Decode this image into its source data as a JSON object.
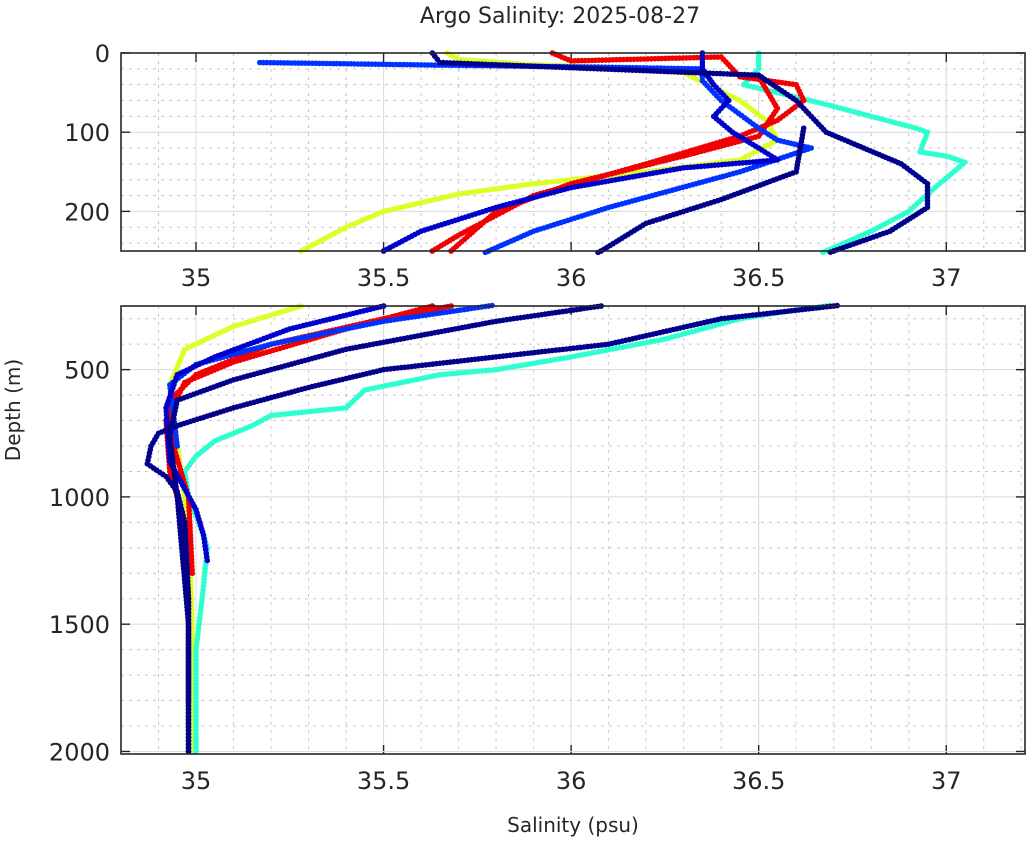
{
  "chart_data": {
    "type": "scatter",
    "title": "Argo Salinity: 2025-08-27",
    "xlabel": "Salinity (psu)",
    "ylabel": "Depth (m)",
    "grid": true,
    "panels": [
      {
        "name": "upper",
        "xlim": [
          34.8,
          37.21
        ],
        "ylim": [
          0,
          250
        ],
        "y_reversed": true,
        "xticks": [
          35,
          35.5,
          36,
          36.5,
          37
        ],
        "xtick_labels": [
          "35",
          "35.5",
          "36",
          "36.5",
          "37"
        ],
        "yticks": [
          0,
          100,
          200
        ],
        "ytick_labels": [
          "0",
          "100",
          "200"
        ],
        "xminor_step": 0.1,
        "yminor_step": 20
      },
      {
        "name": "lower",
        "xlim": [
          34.8,
          37.21
        ],
        "ylim": [
          250,
          2010
        ],
        "y_reversed": true,
        "xticks": [
          35,
          35.5,
          36,
          36.5,
          37
        ],
        "xtick_labels": [
          "35",
          "35.5",
          "36",
          "36.5",
          "37"
        ],
        "yticks": [
          500,
          1000,
          1500,
          2000
        ],
        "ytick_labels": [
          "500",
          "1000",
          "1500",
          "2000"
        ],
        "xminor_step": 0.1,
        "yminor_step": 100
      }
    ],
    "series": [
      {
        "name": "profile-yellow",
        "color": "#dcff2a",
        "points": [
          [
            35.67,
            0
          ],
          [
            35.7,
            8
          ],
          [
            35.9,
            15
          ],
          [
            36.1,
            18
          ],
          [
            36.3,
            25
          ],
          [
            36.45,
            60
          ],
          [
            36.52,
            85
          ],
          [
            36.55,
            110
          ],
          [
            36.45,
            135
          ],
          [
            36.2,
            150
          ],
          [
            35.9,
            165
          ],
          [
            35.7,
            178
          ],
          [
            35.5,
            200
          ],
          [
            35.4,
            220
          ],
          [
            35.28,
            250
          ],
          [
            35.28,
            250
          ],
          [
            35.1,
            330
          ],
          [
            34.97,
            420
          ],
          [
            34.93,
            560
          ],
          [
            34.95,
            800
          ],
          [
            34.98,
            1100
          ],
          [
            34.99,
            1500
          ],
          [
            34.99,
            2000
          ]
        ]
      },
      {
        "name": "profile-cyan",
        "color": "#2effd0",
        "points": [
          [
            36.5,
            0
          ],
          [
            36.5,
            20
          ],
          [
            36.46,
            40
          ],
          [
            36.55,
            50
          ],
          [
            36.68,
            65
          ],
          [
            36.8,
            80
          ],
          [
            36.92,
            95
          ],
          [
            36.95,
            100
          ],
          [
            36.93,
            125
          ],
          [
            37.0,
            130
          ],
          [
            37.05,
            138
          ],
          [
            36.97,
            170
          ],
          [
            36.9,
            200
          ],
          [
            36.8,
            225
          ],
          [
            36.68,
            250
          ],
          [
            36.6,
            265
          ],
          [
            36.45,
            300
          ],
          [
            36.25,
            380
          ],
          [
            36.0,
            450
          ],
          [
            35.8,
            500
          ],
          [
            35.65,
            520
          ],
          [
            35.45,
            580
          ],
          [
            35.4,
            650
          ],
          [
            35.2,
            680
          ],
          [
            35.15,
            720
          ],
          [
            35.05,
            780
          ],
          [
            35.0,
            840
          ],
          [
            34.97,
            900
          ],
          [
            34.98,
            1000
          ],
          [
            35.02,
            1150
          ],
          [
            35.03,
            1200
          ],
          [
            35.02,
            1350
          ],
          [
            35.0,
            1600
          ],
          [
            35.0,
            1750
          ],
          [
            35.0,
            2000
          ]
        ]
      },
      {
        "name": "profile-red",
        "color": "#f00000",
        "points": [
          [
            35.95,
            0
          ],
          [
            36.0,
            10
          ],
          [
            36.4,
            5
          ],
          [
            36.45,
            30
          ],
          [
            36.6,
            40
          ],
          [
            36.62,
            60
          ],
          [
            36.55,
            85
          ],
          [
            36.45,
            105
          ],
          [
            36.2,
            140
          ],
          [
            35.9,
            180
          ],
          [
            35.7,
            230
          ],
          [
            35.63,
            250
          ],
          [
            35.63,
            250
          ],
          [
            35.4,
            340
          ],
          [
            35.1,
            470
          ],
          [
            34.97,
            550
          ],
          [
            34.92,
            700
          ],
          [
            34.93,
            900
          ],
          [
            34.97,
            1100
          ],
          [
            34.98,
            1400
          ],
          [
            34.98,
            1800
          ]
        ]
      },
      {
        "name": "profile-red-2",
        "color": "#f00000",
        "points": [
          [
            36.5,
            30
          ],
          [
            36.55,
            70
          ],
          [
            36.5,
            105
          ],
          [
            36.3,
            130
          ],
          [
            36.0,
            165
          ],
          [
            35.8,
            200
          ],
          [
            35.68,
            250
          ],
          [
            35.68,
            250
          ],
          [
            35.5,
            300
          ],
          [
            35.2,
            400
          ],
          [
            35.0,
            520
          ],
          [
            34.93,
            620
          ],
          [
            34.94,
            800
          ],
          [
            34.98,
            1000
          ],
          [
            34.99,
            1300
          ]
        ]
      },
      {
        "name": "profile-blue",
        "color": "#0032ff",
        "points": [
          [
            35.17,
            12
          ],
          [
            35.6,
            15
          ],
          [
            36.1,
            18
          ],
          [
            36.35,
            20
          ],
          [
            36.35,
            35
          ],
          [
            36.4,
            60
          ],
          [
            36.5,
            95
          ],
          [
            36.55,
            110
          ],
          [
            36.64,
            120
          ],
          [
            36.45,
            150
          ],
          [
            36.1,
            195
          ],
          [
            35.9,
            225
          ],
          [
            35.78,
            250
          ],
          [
            35.78,
            250
          ],
          [
            35.5,
            310
          ],
          [
            35.2,
            400
          ],
          [
            35.0,
            480
          ],
          [
            34.93,
            560
          ],
          [
            34.95,
            800
          ]
        ]
      },
      {
        "name": "profile-mediumblue",
        "color": "#0000cd",
        "points": [
          [
            36.35,
            0
          ],
          [
            36.35,
            20
          ],
          [
            36.38,
            40
          ],
          [
            36.42,
            60
          ],
          [
            36.38,
            80
          ],
          [
            36.43,
            100
          ],
          [
            36.5,
            120
          ],
          [
            36.55,
            135
          ],
          [
            36.3,
            145
          ],
          [
            36.0,
            170
          ],
          [
            35.8,
            195
          ],
          [
            35.6,
            225
          ],
          [
            35.5,
            250
          ],
          [
            35.5,
            250
          ],
          [
            35.25,
            340
          ],
          [
            35.05,
            450
          ],
          [
            34.95,
            520
          ],
          [
            34.92,
            650
          ],
          [
            34.93,
            860
          ],
          [
            35.0,
            1050
          ],
          [
            35.02,
            1150
          ],
          [
            35.03,
            1250
          ]
        ]
      },
      {
        "name": "profile-darkblue",
        "color": "#00008b",
        "points": [
          [
            35.63,
            0
          ],
          [
            35.65,
            12
          ],
          [
            36.5,
            28
          ],
          [
            36.6,
            60
          ],
          [
            36.68,
            100
          ],
          [
            36.78,
            120
          ],
          [
            36.88,
            140
          ],
          [
            36.95,
            165
          ],
          [
            36.95,
            195
          ],
          [
            36.85,
            225
          ],
          [
            36.7,
            250
          ],
          [
            36.7,
            250
          ],
          [
            36.4,
            300
          ],
          [
            36.1,
            400
          ],
          [
            35.8,
            450
          ],
          [
            35.5,
            500
          ],
          [
            35.3,
            570
          ],
          [
            35.1,
            650
          ],
          [
            34.95,
            720
          ],
          [
            34.9,
            750
          ],
          [
            34.88,
            800
          ],
          [
            34.87,
            870
          ],
          [
            34.92,
            920
          ],
          [
            34.95,
            980
          ],
          [
            34.97,
            1100
          ],
          [
            34.98,
            1400
          ],
          [
            34.98,
            2000
          ]
        ]
      },
      {
        "name": "profile-navy",
        "color": "#00008b",
        "points": [
          [
            36.62,
            95
          ],
          [
            36.6,
            150
          ],
          [
            36.4,
            185
          ],
          [
            36.2,
            215
          ],
          [
            36.08,
            250
          ],
          [
            36.08,
            250
          ],
          [
            35.8,
            310
          ],
          [
            35.4,
            420
          ],
          [
            35.1,
            540
          ],
          [
            34.95,
            620
          ],
          [
            34.93,
            760
          ],
          [
            34.95,
            1000
          ],
          [
            34.98,
            1500
          ],
          [
            34.98,
            2000
          ]
        ]
      }
    ]
  }
}
